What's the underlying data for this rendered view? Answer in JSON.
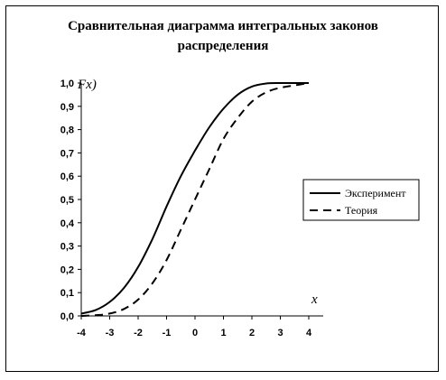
{
  "chart_data": {
    "type": "line",
    "title": "Сравнительная диаграмма интегральных законов распределения",
    "title_lines": [
      "Сравнительная диаграмма интегральных законов",
      "распределения"
    ],
    "xlabel": "x",
    "ylabel": "Fx)",
    "xlim": [
      -4,
      4
    ],
    "ylim": [
      0,
      1
    ],
    "x_ticks": [
      "-4",
      "-3",
      "-2",
      "-1",
      "0",
      "1",
      "2",
      "3",
      "4"
    ],
    "y_ticks": [
      "0,0",
      "0,1",
      "0,2",
      "0,3",
      "0,4",
      "0,5",
      "0,6",
      "0,7",
      "0,8",
      "0,9",
      "1,0"
    ],
    "grid": false,
    "legend_position": "right",
    "series": [
      {
        "name": "Эксперимент",
        "style": "solid",
        "color": "#000000",
        "x": [
          -4,
          -3.5,
          -3,
          -2.5,
          -2,
          -1.5,
          -1,
          -0.5,
          0,
          0.5,
          1,
          1.5,
          2,
          2.5,
          3,
          3.5,
          4
        ],
        "y": [
          0.01,
          0.025,
          0.06,
          0.12,
          0.21,
          0.33,
          0.47,
          0.6,
          0.71,
          0.81,
          0.89,
          0.95,
          0.985,
          0.998,
          1.0,
          1.0,
          1.0
        ]
      },
      {
        "name": "Теория",
        "style": "dashed",
        "color": "#000000",
        "x": [
          -4,
          -3.5,
          -3,
          -2.5,
          -2,
          -1.5,
          -1,
          -0.5,
          0,
          0.5,
          1,
          1.5,
          2,
          2.5,
          3,
          3.5,
          4
        ],
        "y": [
          0.0,
          0.003,
          0.01,
          0.03,
          0.07,
          0.14,
          0.24,
          0.37,
          0.5,
          0.63,
          0.76,
          0.85,
          0.92,
          0.96,
          0.98,
          0.99,
          1.0
        ]
      }
    ]
  }
}
